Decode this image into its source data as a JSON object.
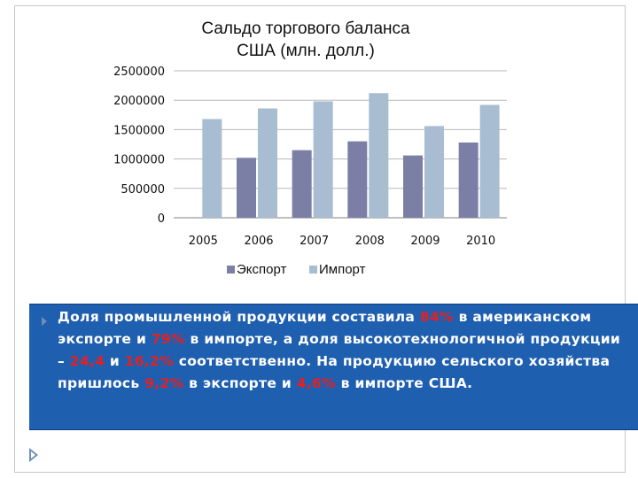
{
  "chart_data": {
    "type": "bar",
    "title": "Сальдо торгового баланса США (млн. долл.)",
    "title_lines": [
      "Сальдо торгового баланса",
      "США (млн. долл.)"
    ],
    "categories": [
      "2005",
      "2006",
      "2007",
      "2008",
      "2009",
      "2010"
    ],
    "series": [
      {
        "name": "Экспорт",
        "color": "#7b7fa6",
        "values": [
          0,
          1020000,
          1150000,
          1300000,
          1060000,
          1280000
        ]
      },
      {
        "name": "Импорт",
        "color": "#a9bdd2",
        "values": [
          1680000,
          1860000,
          1980000,
          2120000,
          1560000,
          1920000
        ]
      }
    ],
    "y_ticks": [
      "0",
      "500000",
      "1000000",
      "1500000",
      "2000000",
      "2500000"
    ],
    "ylim": [
      0,
      2500000
    ],
    "xlabel": "",
    "ylabel": "",
    "grid": true,
    "legend_position": "bottom"
  },
  "text_block": {
    "parts": [
      {
        "t": "Доля промышленной продукции составила ",
        "hl": false
      },
      {
        "t": "84%",
        "hl": true
      },
      {
        "t": " в американском экспорте и ",
        "hl": false
      },
      {
        "t": "79%",
        "hl": true
      },
      {
        "t": " в импорте, а доля высокотехнологичной продукции – ",
        "hl": false
      },
      {
        "t": "24,4",
        "hl": true
      },
      {
        "t": " и ",
        "hl": false
      },
      {
        "t": "16,2%",
        "hl": true
      },
      {
        "t": " соответственно. На продукцию сельского хозяйства пришлось ",
        "hl": false
      },
      {
        "t": "9,2%",
        "hl": true
      },
      {
        "t": " в экспорте и ",
        "hl": false
      },
      {
        "t": "4,6%",
        "hl": true
      },
      {
        "t": " в импорте США.",
        "hl": false
      }
    ],
    "highlight_color": "#e52020",
    "panel_color": "#1f5fb0"
  }
}
